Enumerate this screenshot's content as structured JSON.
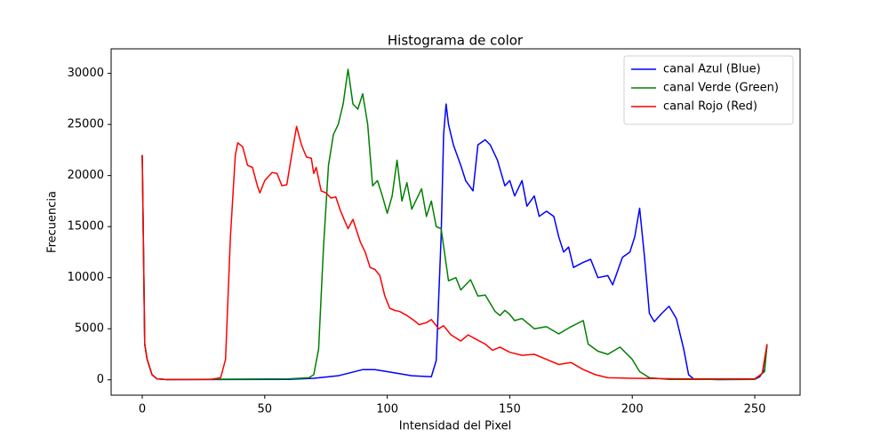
{
  "chart_data": {
    "type": "line",
    "title": "Histograma de color",
    "xlabel": "Intensidad del Pixel",
    "ylabel": "Frecuencia",
    "xlim": [
      -12.7,
      268.5
    ],
    "ylim": [
      -1500,
      32400
    ],
    "xticks": [
      0,
      50,
      100,
      150,
      200,
      250
    ],
    "yticks": [
      0,
      5000,
      10000,
      15000,
      20000,
      25000,
      30000
    ],
    "legend": "upper right",
    "series": [
      {
        "name": "canal Azul (Blue)",
        "color": "#0000ff",
        "x": [
          0,
          1,
          2,
          4,
          6,
          10,
          60,
          70,
          80,
          85,
          90,
          95,
          100,
          110,
          118,
          120,
          122,
          123,
          124,
          125,
          127,
          130,
          132,
          135,
          137,
          140,
          142,
          145,
          148,
          150,
          152,
          155,
          157,
          160,
          162,
          165,
          168,
          170,
          172,
          174,
          176,
          180,
          183,
          186,
          190,
          192,
          196,
          199,
          201,
          203,
          205,
          207,
          209,
          212,
          215,
          218,
          221,
          223,
          225,
          235,
          250,
          252,
          254,
          255
        ],
        "values": [
          22000,
          3500,
          2000,
          500,
          100,
          20,
          50,
          150,
          400,
          700,
          1000,
          1000,
          800,
          400,
          300,
          1900,
          14000,
          24000,
          27000,
          25000,
          23000,
          21000,
          19500,
          18500,
          23000,
          23500,
          23000,
          21500,
          19000,
          19500,
          18000,
          19500,
          17000,
          18000,
          16000,
          16500,
          16000,
          14000,
          12500,
          13000,
          11000,
          11500,
          11800,
          10000,
          10200,
          9300,
          12000,
          12500,
          14000,
          16800,
          12000,
          6500,
          5700,
          6500,
          7200,
          6000,
          3000,
          500,
          100,
          20,
          50,
          300,
          1000,
          3500
        ]
      },
      {
        "name": "canal Verde (Green)",
        "color": "#008000",
        "x": [
          0,
          1,
          2,
          4,
          6,
          10,
          60,
          68,
          70,
          72,
          74,
          76,
          78,
          80,
          82,
          84,
          86,
          88,
          90,
          92,
          94,
          96,
          98,
          100,
          102,
          104,
          106,
          108,
          110,
          114,
          116,
          118,
          120,
          122,
          125,
          128,
          130,
          134,
          137,
          140,
          144,
          146,
          148,
          150,
          152,
          155,
          160,
          165,
          170,
          175,
          180,
          182,
          186,
          190,
          195,
          200,
          203,
          207,
          215,
          250,
          254,
          255
        ],
        "values": [
          22000,
          3500,
          2000,
          500,
          100,
          30,
          100,
          200,
          500,
          3000,
          13000,
          21000,
          24000,
          25000,
          27000,
          30400,
          27000,
          26500,
          28000,
          25000,
          19000,
          19500,
          18000,
          16300,
          18000,
          21500,
          17500,
          19300,
          16700,
          18700,
          16000,
          17500,
          15000,
          14800,
          9700,
          10000,
          8800,
          9800,
          8200,
          8300,
          6700,
          6300,
          6800,
          6400,
          5800,
          6000,
          5000,
          5200,
          4500,
          5200,
          5800,
          3500,
          2800,
          2500,
          3200,
          2000,
          800,
          200,
          50,
          50,
          800,
          3400
        ]
      },
      {
        "name": "canal Rojo (Red)",
        "color": "#ff0000",
        "x": [
          0,
          1,
          2,
          4,
          6,
          10,
          28,
          32,
          34,
          36,
          38,
          39,
          41,
          43,
          45,
          47,
          48,
          50,
          53,
          55,
          57,
          59,
          61,
          63,
          65,
          67,
          69,
          70,
          71,
          73,
          75,
          77,
          79,
          81,
          84,
          86,
          89,
          91,
          93,
          95,
          97,
          99,
          101,
          103,
          105,
          108,
          111,
          113,
          116,
          118,
          121,
          123,
          126,
          130,
          133,
          136,
          140,
          143,
          146,
          150,
          155,
          160,
          165,
          170,
          175,
          180,
          185,
          190,
          200,
          220,
          250,
          253,
          255
        ],
        "values": [
          22000,
          3500,
          2000,
          500,
          100,
          30,
          50,
          200,
          2000,
          14000,
          22000,
          23200,
          22800,
          21000,
          20800,
          19000,
          18300,
          19500,
          20300,
          20200,
          19000,
          19100,
          22000,
          24800,
          23000,
          21800,
          21700,
          20200,
          20800,
          18500,
          18300,
          17800,
          17900,
          16500,
          14800,
          15700,
          13500,
          12500,
          11000,
          10800,
          10200,
          8200,
          7000,
          6800,
          6700,
          6300,
          5800,
          5400,
          5600,
          5900,
          5000,
          5300,
          4400,
          3800,
          4400,
          4000,
          3500,
          2900,
          3200,
          2700,
          2400,
          2500,
          2000,
          1500,
          1700,
          1000,
          500,
          200,
          150,
          100,
          100,
          600,
          3500
        ]
      }
    ]
  }
}
